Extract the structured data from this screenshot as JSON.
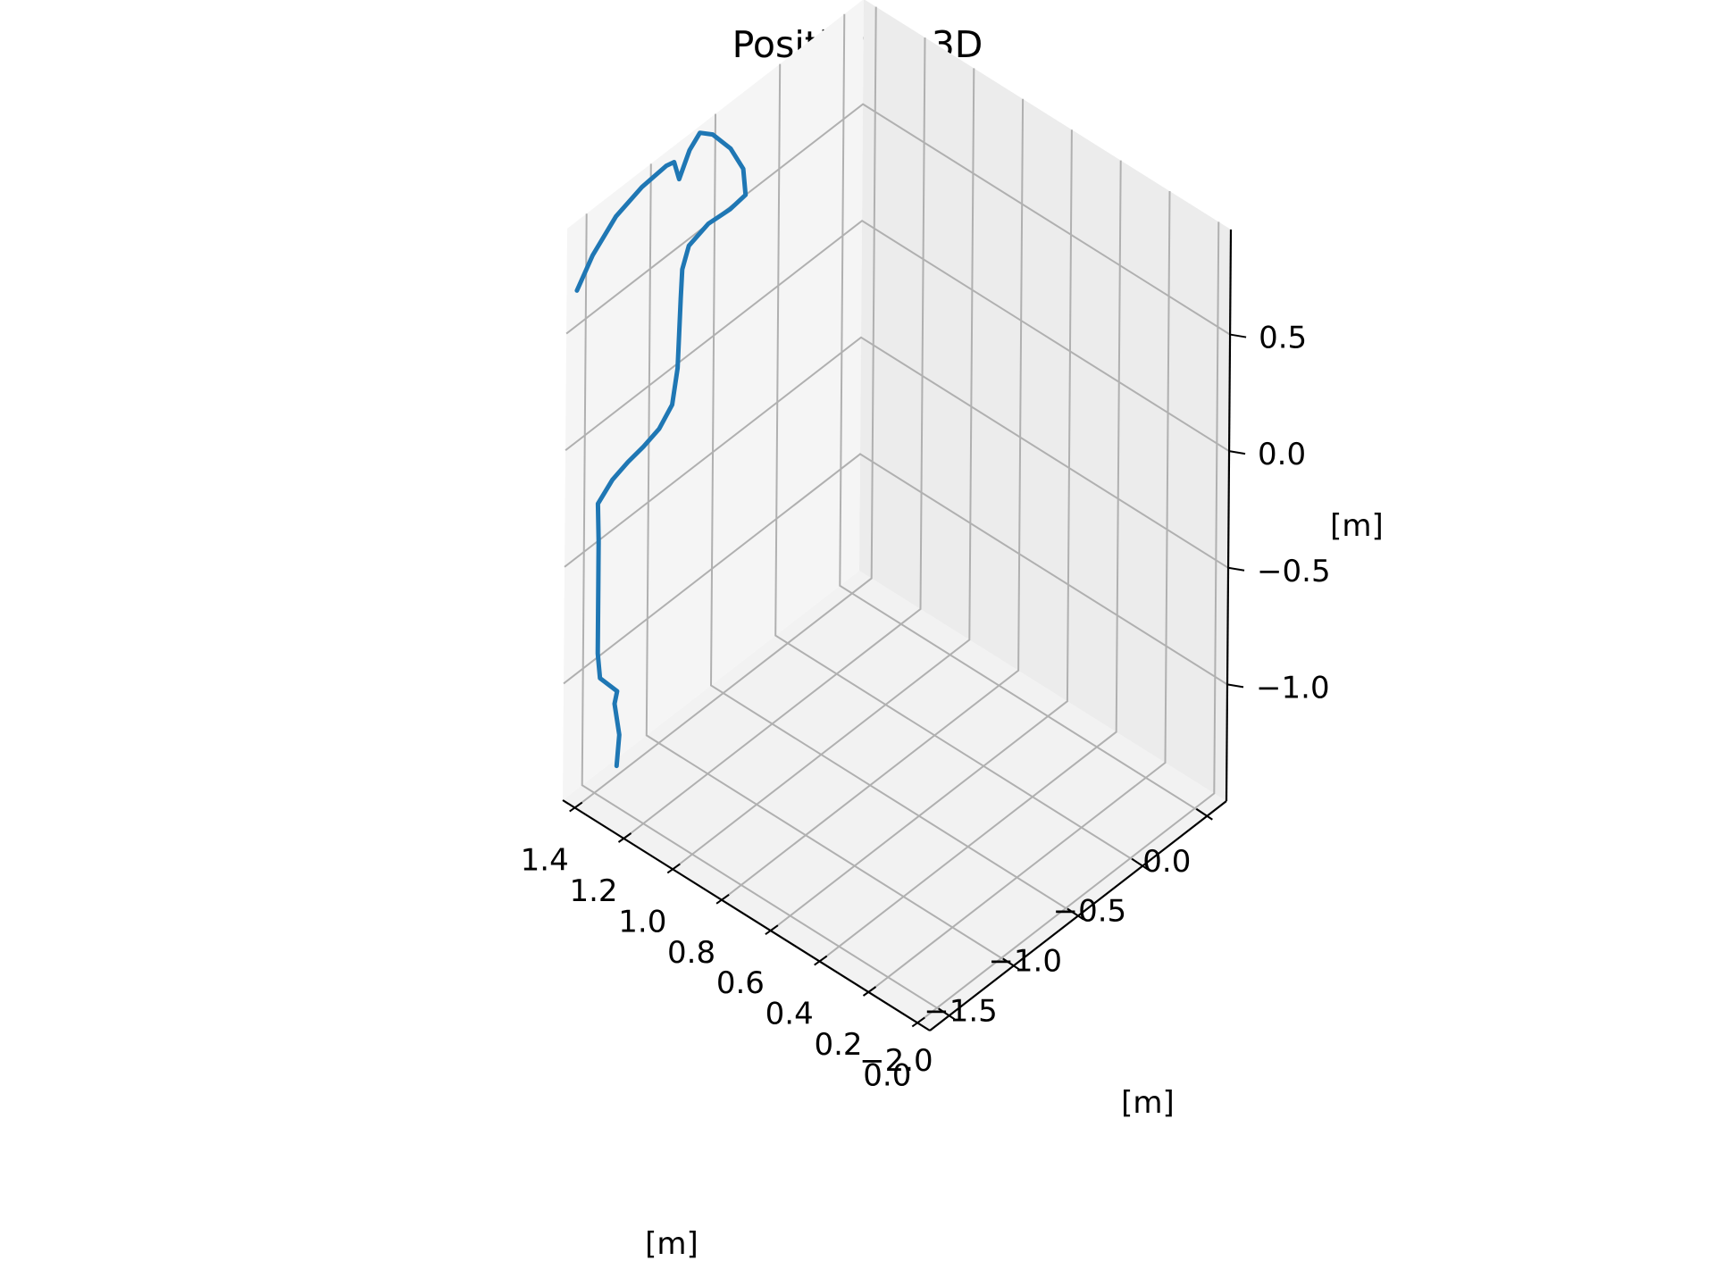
{
  "chart_data": {
    "type": "line",
    "projection": "3d",
    "title": "Position in 3D",
    "xlabel": "[m]",
    "ylabel": "[m]",
    "zlabel": "[m]",
    "xlim": [
      -0.05,
      1.45
    ],
    "ylim": [
      -2.15,
      0.15
    ],
    "zlim": [
      -1.5,
      0.95
    ],
    "xticks": [
      0.0,
      0.2,
      0.4,
      0.6,
      0.8,
      1.0,
      1.2,
      1.4
    ],
    "yticks": [
      -2.0,
      -1.5,
      -1.0,
      -0.5,
      0.0
    ],
    "zticks": [
      -1.0,
      -0.5,
      0.0,
      0.5
    ],
    "xtick_labels": [
      "0.0",
      "0.2",
      "0.4",
      "0.6",
      "0.8",
      "1.0",
      "1.2",
      "1.4"
    ],
    "ytick_labels": [
      "−2.0",
      "−1.5",
      "−1.0",
      "−0.5",
      "0.0"
    ],
    "ztick_labels": [
      "−1.0",
      "−0.5",
      "0.0",
      "0.5"
    ],
    "grid": true,
    "legend": "none",
    "line_color": "#1f77b4",
    "series": [
      {
        "points": [
          [
            1.3,
            -2.02,
            -1.31
          ],
          [
            1.29,
            -2.02,
            -1.17
          ],
          [
            1.31,
            -2.02,
            -1.05
          ],
          [
            1.3,
            -2.02,
            -0.99
          ],
          [
            1.37,
            -2.02,
            -0.98
          ],
          [
            1.38,
            -2.02,
            -0.88
          ],
          [
            1.38,
            -2.02,
            -0.6
          ],
          [
            1.38,
            -2.02,
            -0.4
          ],
          [
            1.41,
            -1.97,
            -0.28
          ],
          [
            1.42,
            -1.84,
            -0.24
          ],
          [
            1.43,
            -1.7,
            -0.23
          ],
          [
            1.44,
            -1.56,
            -0.23
          ],
          [
            1.45,
            -1.42,
            -0.22
          ],
          [
            1.45,
            -1.32,
            -0.16
          ],
          [
            1.45,
            -1.28,
            -0.02
          ],
          [
            1.45,
            -1.27,
            0.12
          ],
          [
            1.45,
            -1.26,
            0.27
          ],
          [
            1.45,
            -1.25,
            0.39
          ],
          [
            1.45,
            -1.2,
            0.47
          ],
          [
            1.45,
            -1.05,
            0.5
          ],
          [
            1.45,
            -0.88,
            0.49
          ],
          [
            1.45,
            -0.76,
            0.5
          ],
          [
            1.45,
            -0.78,
            0.62
          ],
          [
            1.45,
            -0.88,
            0.75
          ],
          [
            1.45,
            -1.02,
            0.87
          ],
          [
            1.45,
            -1.12,
            0.92
          ],
          [
            1.45,
            -1.2,
            0.88
          ],
          [
            1.45,
            -1.28,
            0.79
          ],
          [
            1.45,
            -1.32,
            0.88
          ],
          [
            1.45,
            -1.38,
            0.89
          ],
          [
            1.45,
            -1.57,
            0.88
          ],
          [
            1.45,
            -1.77,
            0.84
          ],
          [
            1.45,
            -1.95,
            0.75
          ],
          [
            1.45,
            -2.07,
            0.65
          ]
        ]
      }
    ]
  }
}
